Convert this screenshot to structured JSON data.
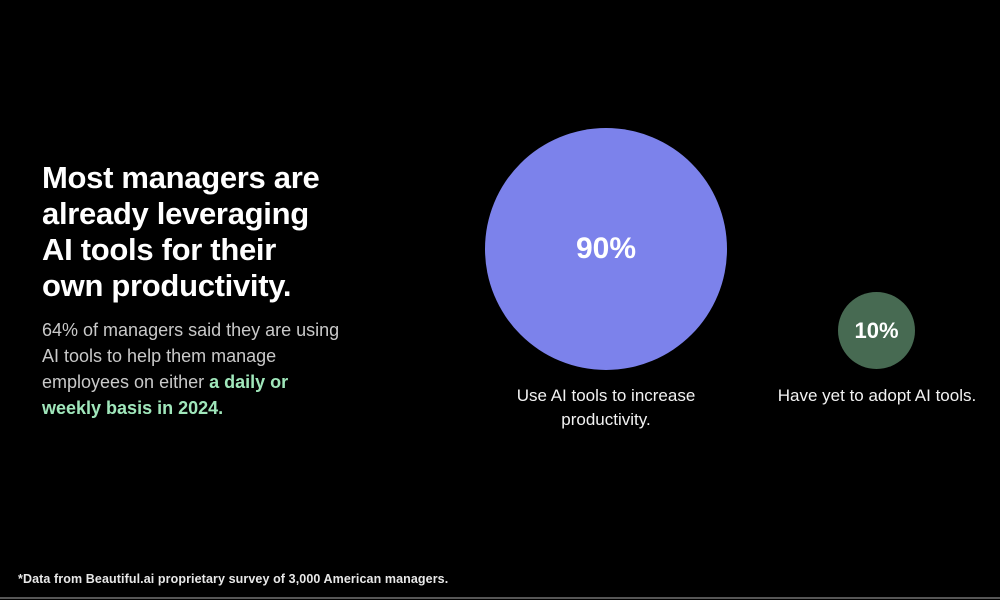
{
  "meta": {
    "background_color": "#000000",
    "accent_purple": "#7c82eb",
    "accent_green_dark": "#476a52",
    "accent_green_light": "#a0e7bb"
  },
  "headline": {
    "lines": [
      "Most managers are",
      "already leveraging",
      "AI tools for their",
      "own productivity."
    ],
    "color": "#ffffff"
  },
  "subtitle": {
    "lines": [
      {
        "normal": "64% of managers said they are using",
        "highlight": ""
      },
      {
        "normal": "AI tools to help them manage",
        "highlight": ""
      },
      {
        "normal": "employees on either ",
        "highlight": "a daily or"
      },
      {
        "normal": "",
        "highlight": "weekly basis in 2024."
      }
    ],
    "normal_color": "#c9c9c9",
    "highlight_color": "#a0e7bb"
  },
  "chart_data": {
    "type": "bubble",
    "title": "Most managers are already leveraging AI tools for their own productivity.",
    "subtitle": "64% of managers said they are using AI tools to help them manage employees on either a daily or weekly basis in 2024.",
    "series": [
      {
        "name": "Use AI tools to increase productivity.",
        "value": 90,
        "value_label": "90%",
        "color": "#7c82eb"
      },
      {
        "name": "Have yet to adopt AI tools.",
        "value": 10,
        "value_label": "10%",
        "color": "#476a52"
      }
    ],
    "value_unit": "percent",
    "legend_position": "below-bubbles",
    "footnote": "*Data from Beautiful.ai proprietary survey of 3,000 American managers."
  }
}
